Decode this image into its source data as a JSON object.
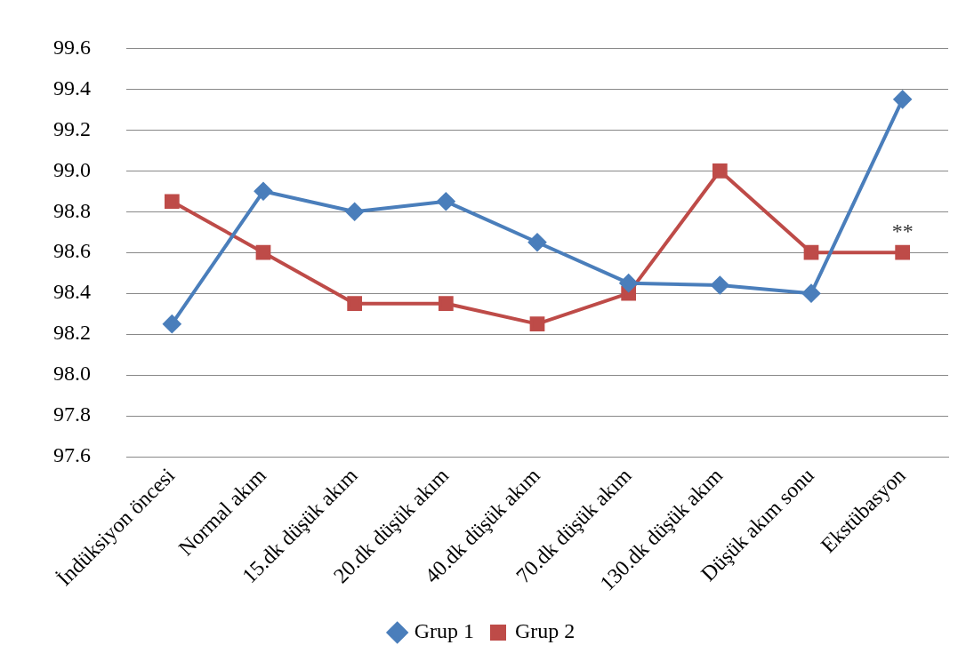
{
  "chart_data": {
    "type": "line",
    "categories": [
      "İndüksiyon öncesi",
      "Normal akım",
      "15.dk düşük akım",
      "20.dk düşük akım",
      "40.dk düşük akım",
      "70.dk düşük akım",
      "130.dk düşük akım",
      "Düşük akım sonu",
      "Ekstübasyon"
    ],
    "series": [
      {
        "name": "Grup 1",
        "color": "#4a7ebb",
        "marker": "diamond",
        "values": [
          98.25,
          98.9,
          98.8,
          98.85,
          98.65,
          98.45,
          98.44,
          98.4,
          99.35
        ]
      },
      {
        "name": "Grup 2",
        "color": "#be4b48",
        "marker": "square",
        "values": [
          98.85,
          98.6,
          98.35,
          98.35,
          98.25,
          98.4,
          99.0,
          98.6,
          98.6
        ]
      }
    ],
    "ylim": [
      97.6,
      99.6
    ],
    "yticks": [
      {
        "value": 97.6,
        "label": "97.6"
      },
      {
        "value": 97.8,
        "label": "97.8"
      },
      {
        "value": 98.0,
        "label": "98.0"
      },
      {
        "value": 98.2,
        "label": "98.2"
      },
      {
        "value": 98.4,
        "label": "98.4"
      },
      {
        "value": 98.6,
        "label": "98.6"
      },
      {
        "value": 98.8,
        "label": "98.8"
      },
      {
        "value": 99.0,
        "label": "99.0"
      },
      {
        "value": 99.2,
        "label": "99.2"
      },
      {
        "value": 99.4,
        "label": "99.4"
      },
      {
        "value": 99.6,
        "label": "99.6"
      }
    ],
    "grid": "y",
    "legend": "bottom",
    "line_style": "solid",
    "annotations": [
      {
        "text": "**",
        "x": "Ekstübasyon",
        "y": 98.6
      }
    ]
  }
}
